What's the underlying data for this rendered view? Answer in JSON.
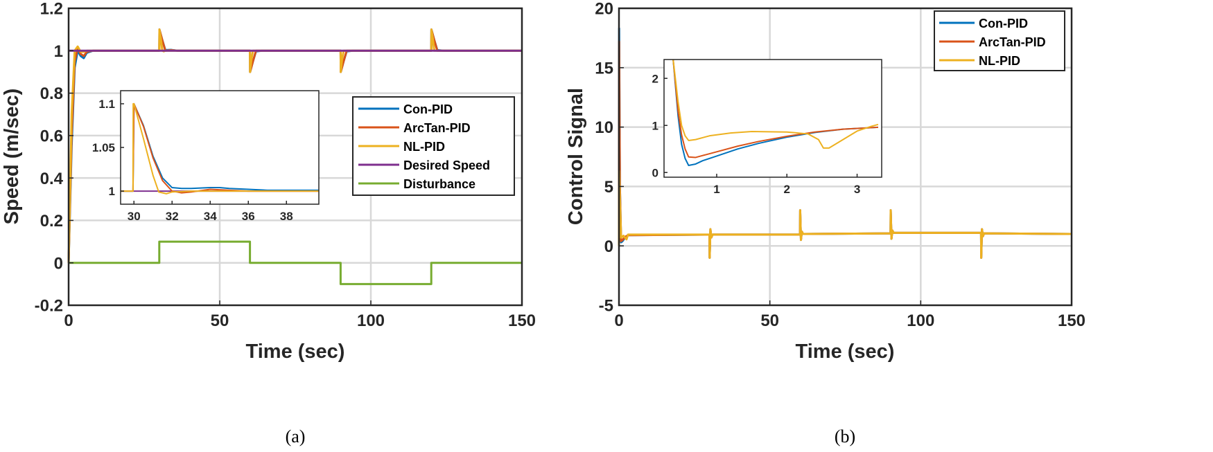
{
  "colors": {
    "con": "#0072BD",
    "arctan": "#D95319",
    "nl": "#EDB120",
    "desired": "#7E2F8E",
    "disturbance": "#77AC30",
    "grid": "#d8d8d8",
    "axis": "#262626"
  },
  "chart_data": [
    {
      "type": "line",
      "caption": "(a)",
      "title": "",
      "xlabel": "Time (sec)",
      "ylabel": "Speed (m/sec)",
      "xlim": [
        0,
        150
      ],
      "ylim": [
        -0.2,
        1.2
      ],
      "xticks": [
        0,
        50,
        100,
        150
      ],
      "xtick_labels": [
        "0",
        "50",
        "100",
        "150"
      ],
      "yticks": [
        -0.2,
        0,
        0.2,
        0.4,
        0.6,
        0.8,
        1,
        1.2
      ],
      "ytick_labels": [
        "-0.2",
        "0",
        "0.2",
        "0.4",
        "0.6",
        "0.8",
        "1",
        "1.2"
      ],
      "grid": true,
      "legend": {
        "location": "center-right",
        "entries": [
          "Con-PID",
          "ArcTan-PID",
          "NL-PID",
          "Desired Speed",
          "Disturbance"
        ]
      },
      "series": [
        {
          "name": "Con-PID",
          "color_key": "con",
          "x": [
            0,
            1,
            2,
            3,
            4,
            5,
            6,
            8,
            10,
            30,
            30.05,
            31,
            32,
            34,
            36,
            50,
            60,
            60.05,
            61,
            62,
            64,
            90,
            90.05,
            91,
            92,
            94,
            120,
            120.05,
            121,
            122,
            124,
            150
          ],
          "y": [
            0,
            0.55,
            0.92,
            1.0,
            0.975,
            0.965,
            0.99,
            1.0,
            1.0,
            1.0,
            1.1,
            1.05,
            1.003,
            1.004,
            1.0,
            1.0,
            1.0,
            0.9,
            0.95,
            0.997,
            1.0,
            1.0,
            0.9,
            0.95,
            0.997,
            1.0,
            1.0,
            1.1,
            1.05,
            1.003,
            1.0,
            1.0
          ]
        },
        {
          "name": "ArcTan-PID",
          "color_key": "arctan",
          "x": [
            0,
            1,
            2,
            3,
            4,
            5,
            6,
            8,
            10,
            30,
            30.05,
            31,
            32,
            34,
            36,
            50,
            60,
            60.05,
            61,
            62,
            64,
            90,
            90.05,
            91,
            92,
            94,
            120,
            120.05,
            121,
            122,
            124,
            150
          ],
          "y": [
            0,
            0.6,
            0.95,
            1.01,
            0.985,
            0.975,
            0.995,
            1.0,
            1.0,
            1.0,
            1.1,
            1.05,
            1.0,
            1.003,
            1.0,
            1.0,
            1.0,
            0.9,
            0.95,
            1.0,
            1.0,
            1.0,
            0.9,
            0.95,
            1.0,
            1.0,
            1.0,
            1.1,
            1.05,
            1.0,
            1.0,
            1.0
          ]
        },
        {
          "name": "NL-PID",
          "color_key": "nl",
          "x": [
            0,
            1,
            2,
            3,
            4,
            5,
            6,
            8,
            10,
            30,
            30.05,
            30.5,
            31,
            31.5,
            32,
            34,
            50,
            60,
            60.05,
            60.5,
            61,
            62,
            90,
            90.05,
            90.5,
            91,
            92,
            120,
            120.05,
            120.5,
            121,
            122,
            150
          ],
          "y": [
            0,
            0.7,
            1.0,
            1.02,
            0.995,
            0.995,
            1.0,
            1.0,
            1.0,
            1.0,
            1.1,
            1.06,
            1.0,
            0.997,
            1.0,
            1.0,
            1.0,
            1.0,
            0.9,
            0.96,
            1.0,
            1.0,
            1.0,
            0.9,
            0.96,
            1.0,
            1.0,
            1.0,
            1.1,
            1.06,
            1.0,
            1.0,
            1.0
          ]
        },
        {
          "name": "Desired Speed",
          "color_key": "desired",
          "x": [
            0,
            150
          ],
          "y": [
            1,
            1
          ]
        },
        {
          "name": "Disturbance",
          "color_key": "disturbance",
          "x": [
            0,
            30,
            30,
            60,
            60,
            90,
            90,
            120,
            120,
            150
          ],
          "y": [
            0,
            0,
            0.1,
            0.1,
            0,
            0,
            -0.1,
            -0.1,
            0,
            0
          ]
        }
      ],
      "inset": {
        "xlim": [
          29.3,
          39.7
        ],
        "ylim": [
          0.985,
          1.115
        ],
        "xticks": [
          30,
          32,
          34,
          36,
          38
        ],
        "xtick_labels": [
          "30",
          "32",
          "34",
          "36",
          "38"
        ],
        "yticks": [
          1,
          1.05,
          1.1
        ],
        "ytick_labels": [
          "1",
          "1.05",
          "1.1"
        ],
        "series": [
          {
            "name": "Desired Speed",
            "color_key": "desired",
            "x": [
              29.3,
              39.7
            ],
            "y": [
              1,
              1
            ]
          },
          {
            "name": "Con-PID",
            "color_key": "con",
            "x": [
              29.3,
              29.95,
              30,
              30.5,
              31,
              31.5,
              32,
              32.5,
              33,
              34,
              34.5,
              35,
              36,
              37,
              38,
              39.7
            ],
            "y": [
              1,
              1,
              1.1,
              1.075,
              1.04,
              1.015,
              1.004,
              1.003,
              1.003,
              1.004,
              1.004,
              1.003,
              1.002,
              1.001,
              1.001,
              1.001
            ]
          },
          {
            "name": "ArcTan-PID",
            "color_key": "arctan",
            "x": [
              29.3,
              29.95,
              30,
              30.5,
              31,
              31.5,
              32,
              32.5,
              33,
              34,
              35,
              36,
              37,
              38,
              39.7
            ],
            "y": [
              1,
              1,
              1.1,
              1.074,
              1.038,
              1.012,
              1.0,
              0.998,
              0.999,
              1.002,
              1.001,
              1.0,
              1.0,
              1.0,
              1.0
            ]
          },
          {
            "name": "NL-PID",
            "color_key": "nl",
            "x": [
              29.3,
              29.95,
              29.96,
              30,
              30.5,
              31,
              31.3,
              31.7,
              32,
              33,
              34,
              39.7
            ],
            "y": [
              1,
              1,
              1.1,
              1.1,
              1.06,
              1.018,
              0.999,
              0.997,
              0.999,
              1.0,
              1.0,
              1.0
            ]
          }
        ]
      }
    },
    {
      "type": "line",
      "caption": "(b)",
      "title": "",
      "xlabel": "Time (sec)",
      "ylabel": "Control Signal",
      "xlim": [
        0,
        150
      ],
      "ylim": [
        -5,
        20
      ],
      "xticks": [
        0,
        50,
        100,
        150
      ],
      "xtick_labels": [
        "0",
        "50",
        "100",
        "150"
      ],
      "yticks": [
        -5,
        0,
        5,
        10,
        15,
        20
      ],
      "ytick_labels": [
        "-5",
        "0",
        "5",
        "10",
        "15",
        "20"
      ],
      "grid": true,
      "legend": {
        "location": "top-right",
        "entries": [
          "Con-PID",
          "ArcTan-PID",
          "NL-PID"
        ]
      },
      "series": [
        {
          "name": "Con-PID",
          "color_key": "con",
          "x": [
            0,
            0.05,
            0.3,
            0.7,
            1.2,
            2,
            3,
            30,
            30.05,
            30.3,
            30.6,
            31,
            60,
            60.05,
            60.3,
            60.6,
            61,
            90,
            90.05,
            90.3,
            90.6,
            91,
            120,
            120.05,
            120.3,
            120.6,
            121,
            150
          ],
          "y": [
            0,
            18.3,
            5,
            0.3,
            0.4,
            0.7,
            0.9,
            0.95,
            -1.0,
            1.4,
            0.7,
            0.95,
            0.95,
            3.0,
            0.5,
            1.2,
            1.0,
            1.05,
            3.0,
            0.6,
            1.3,
            1.1,
            1.1,
            -1.0,
            1.4,
            0.8,
            1.05,
            1.0
          ]
        },
        {
          "name": "ArcTan-PID",
          "color_key": "arctan",
          "x": [
            0,
            0.05,
            0.3,
            0.7,
            1.2,
            2,
            3,
            30,
            30.05,
            30.3,
            30.6,
            31,
            60,
            60.05,
            60.3,
            60.6,
            61,
            90,
            90.05,
            90.3,
            90.6,
            91,
            120,
            120.05,
            120.3,
            120.6,
            121,
            150
          ],
          "y": [
            0,
            17.2,
            5,
            0.4,
            0.5,
            0.75,
            0.9,
            0.95,
            -1.0,
            1.4,
            0.7,
            0.95,
            0.95,
            3.0,
            0.5,
            1.2,
            1.0,
            1.05,
            3.0,
            0.6,
            1.3,
            1.1,
            1.1,
            -1.0,
            1.4,
            0.8,
            1.05,
            1.0
          ]
        },
        {
          "name": "NL-PID",
          "color_key": "nl",
          "x": [
            0,
            0.05,
            0.3,
            0.7,
            1.5,
            2.5,
            3,
            30,
            30.05,
            30.3,
            30.6,
            31,
            60,
            60.05,
            60.3,
            60.6,
            61,
            90,
            90.05,
            90.3,
            90.6,
            91,
            120,
            120.05,
            120.3,
            120.6,
            121,
            150
          ],
          "y": [
            0,
            6.3,
            4,
            0.7,
            0.85,
            0.55,
            0.95,
            0.95,
            -1.0,
            1.4,
            0.7,
            0.95,
            0.95,
            3.0,
            0.5,
            1.2,
            1.0,
            1.05,
            3.0,
            0.6,
            1.3,
            1.1,
            1.1,
            -1.0,
            1.4,
            0.8,
            1.05,
            1.0
          ]
        }
      ],
      "inset": {
        "xlim": [
          0.25,
          3.35
        ],
        "ylim": [
          -0.1,
          2.4
        ],
        "xticks": [
          1,
          2,
          3
        ],
        "xtick_labels": [
          "1",
          "2",
          "3"
        ],
        "yticks": [
          0,
          1,
          2
        ],
        "ytick_labels": [
          "0",
          "1",
          "2"
        ],
        "series": [
          {
            "name": "Con-PID",
            "color_key": "con",
            "x": [
              0.38,
              0.45,
              0.5,
              0.55,
              0.6,
              0.7,
              0.8,
              1.0,
              1.3,
              1.6,
              2.0,
              2.4,
              2.8,
              3.3
            ],
            "y": [
              2.4,
              1.2,
              0.6,
              0.3,
              0.15,
              0.18,
              0.25,
              0.35,
              0.5,
              0.62,
              0.75,
              0.85,
              0.92,
              0.96
            ]
          },
          {
            "name": "ArcTan-PID",
            "color_key": "arctan",
            "x": [
              0.38,
              0.45,
              0.5,
              0.55,
              0.6,
              0.7,
              0.8,
              1.0,
              1.3,
              1.6,
              2.0,
              2.4,
              2.8,
              3.3
            ],
            "y": [
              2.4,
              1.3,
              0.8,
              0.5,
              0.33,
              0.32,
              0.36,
              0.44,
              0.56,
              0.66,
              0.77,
              0.86,
              0.92,
              0.96
            ]
          },
          {
            "name": "NL-PID",
            "color_key": "nl",
            "x": [
              0.38,
              0.45,
              0.5,
              0.55,
              0.6,
              0.7,
              0.9,
              1.2,
              1.5,
              2.0,
              2.3,
              2.45,
              2.52,
              2.6,
              2.8,
              3.0,
              3.2,
              3.3
            ],
            "y": [
              2.4,
              1.5,
              1.0,
              0.78,
              0.68,
              0.7,
              0.78,
              0.84,
              0.87,
              0.86,
              0.82,
              0.7,
              0.52,
              0.52,
              0.7,
              0.88,
              0.98,
              1.02
            ]
          }
        ]
      }
    }
  ]
}
